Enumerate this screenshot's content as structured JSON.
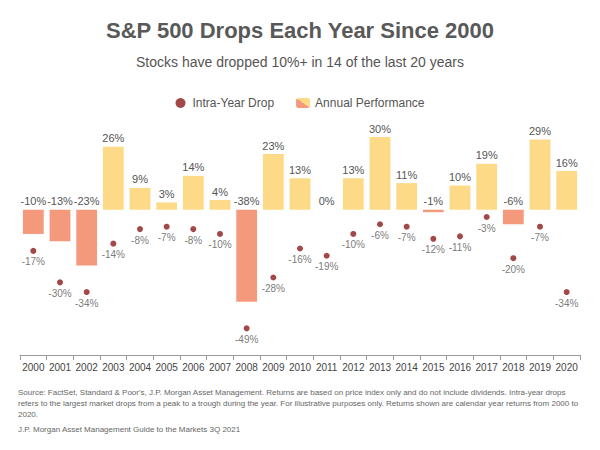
{
  "chart_data": {
    "type": "bar",
    "title": "S&P 500 Drops Each Year Since 2000",
    "subtitle": "Stocks have dropped 10%+ in 14 of the last 20 years",
    "categories": [
      "2000",
      "2001",
      "2002",
      "2003",
      "2004",
      "2005",
      "2006",
      "2007",
      "2008",
      "2009",
      "2010",
      "2011",
      "2012",
      "2013",
      "2014",
      "2015",
      "2016",
      "2017",
      "2018",
      "2019",
      "2020"
    ],
    "series": [
      {
        "name": "Intra-Year Drop",
        "type": "scatter",
        "color": "#8b1a1a",
        "marker": "circle",
        "values": [
          -17,
          -30,
          -34,
          -14,
          -8,
          -7,
          -8,
          -10,
          -49,
          -28,
          -16,
          -19,
          -10,
          -6,
          -7,
          -12,
          -11,
          -3,
          -20,
          -7,
          -34
        ],
        "value_labels": [
          "-17%",
          "-30%",
          "-34%",
          "-14%",
          "-8%",
          "-7%",
          "-8%",
          "-10%",
          "-49%",
          "-28%",
          "-16%",
          "-19%",
          "-10%",
          "-6%",
          "-7%",
          "-12%",
          "-11%",
          "-3%",
          "-20%",
          "-7%",
          "-34%"
        ]
      },
      {
        "name": "Annual Performance",
        "type": "bar",
        "colors": [
          "#f4997b",
          "#f4997b",
          "#f4997b",
          "#fcda87",
          "#fcda87",
          "#fcda87",
          "#fcda87",
          "#fcda87",
          "#f4997b",
          "#fcda87",
          "#fcda87",
          "#fcda87",
          "#fcda87",
          "#fcda87",
          "#fcda87",
          "#f4997b",
          "#fcda87",
          "#fcda87",
          "#f4997b",
          "#fcda87",
          "#fcda87"
        ],
        "values": [
          -10,
          -13,
          -23,
          26,
          9,
          3,
          14,
          4,
          -38,
          23,
          13,
          0,
          13,
          30,
          11,
          -1,
          10,
          19,
          -6,
          29,
          16
        ],
        "value_labels": [
          "-10%",
          "-13%",
          "-23%",
          "26%",
          "9%",
          "3%",
          "14%",
          "4%",
          "-38%",
          "23%",
          "13%",
          "0%",
          "13%",
          "30%",
          "11%",
          "-1%",
          "10%",
          "19%",
          "-6%",
          "29%",
          "16%"
        ]
      }
    ],
    "ylim": [
      -60,
      35
    ],
    "data_labels": true,
    "tick_labels": "x",
    "grid": false,
    "legend": "top",
    "annotations": [
      "Source: FactSet, Standard & Poor's, J.P. Morgan Asset Management. Returns are based on price index only and do not include dividends. Intra-year drops refers to the largest market drops from a peak to a trough during the year. For illustrative purposes only. Returns shown are calendar year returns from 2000 to 2020.",
      "J.P. Morgan Asset Management Guide to the Markets 3Q 2021"
    ]
  }
}
